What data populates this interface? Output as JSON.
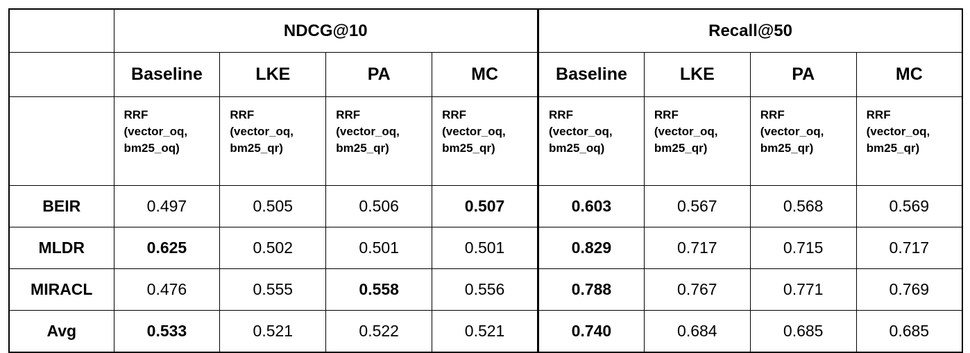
{
  "table": {
    "groups": [
      "NDCG@10",
      "Recall@50"
    ],
    "columns": [
      "Baseline",
      "LKE",
      "PA",
      "MC",
      "Baseline",
      "LKE",
      "PA",
      "MC"
    ],
    "descriptions": [
      [
        "RRF",
        "(vector_oq,",
        "bm25_oq)"
      ],
      [
        "RRF",
        "(vector_oq,",
        "bm25_qr)"
      ],
      [
        "RRF",
        "(vector_oq,",
        "bm25_qr)"
      ],
      [
        "RRF",
        "(vector_oq,",
        "bm25_qr)"
      ],
      [
        "RRF",
        "(vector_oq,",
        "bm25_oq)"
      ],
      [
        "RRF",
        "(vector_oq,",
        "bm25_qr)"
      ],
      [
        "RRF",
        "(vector_oq,",
        "bm25_qr)"
      ],
      [
        "RRF",
        "(vector_oq,",
        "bm25_qr)"
      ]
    ],
    "rows": [
      {
        "label": "BEIR",
        "values": [
          "0.497",
          "0.505",
          "0.506",
          "0.507",
          "0.603",
          "0.567",
          "0.568",
          "0.569"
        ],
        "bold": [
          3,
          4
        ]
      },
      {
        "label": "MLDR",
        "values": [
          "0.625",
          "0.502",
          "0.501",
          "0.501",
          "0.829",
          "0.717",
          "0.715",
          "0.717"
        ],
        "bold": [
          0,
          4
        ]
      },
      {
        "label": "MIRACL",
        "values": [
          "0.476",
          "0.555",
          "0.558",
          "0.556",
          "0.788",
          "0.767",
          "0.771",
          "0.769"
        ],
        "bold": [
          2,
          4
        ]
      },
      {
        "label": "Avg",
        "values": [
          "0.533",
          "0.521",
          "0.522",
          "0.521",
          "0.740",
          "0.684",
          "0.685",
          "0.685"
        ],
        "bold": [
          0,
          4
        ]
      }
    ]
  }
}
